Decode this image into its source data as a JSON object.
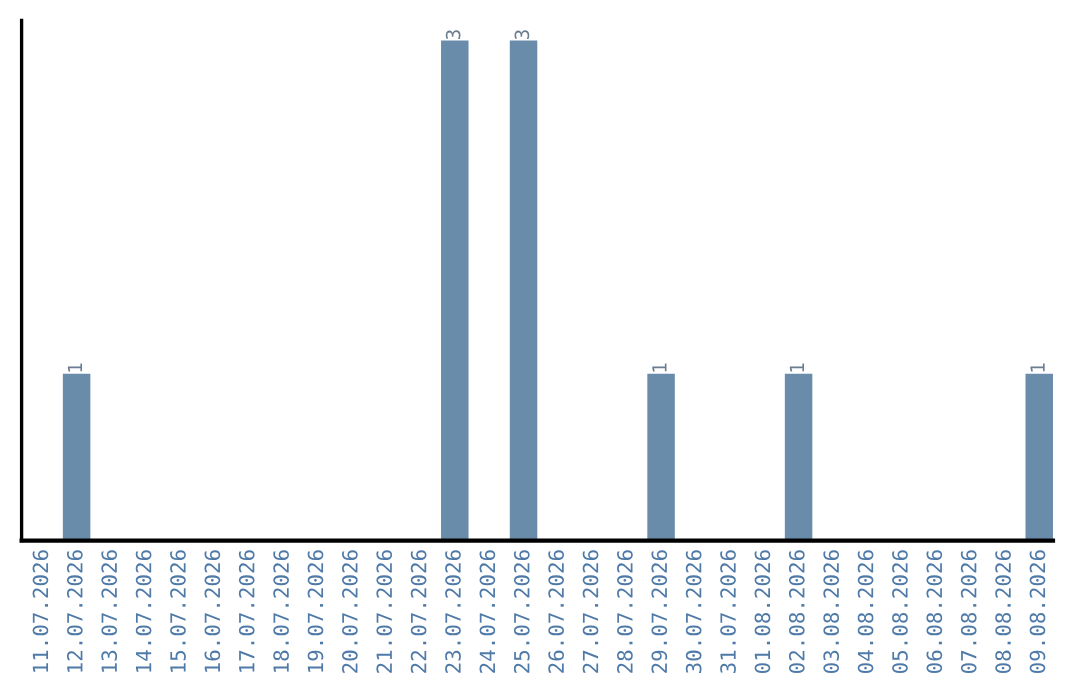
{
  "chart_data": {
    "type": "bar",
    "categories": [
      "11.07.2026",
      "12.07.2026",
      "13.07.2026",
      "14.07.2026",
      "15.07.2026",
      "16.07.2026",
      "17.07.2026",
      "18.07.2026",
      "19.07.2026",
      "20.07.2026",
      "21.07.2026",
      "22.07.2026",
      "23.07.2026",
      "24.07.2026",
      "25.07.2026",
      "26.07.2026",
      "27.07.2026",
      "28.07.2026",
      "29.07.2026",
      "30.07.2026",
      "31.07.2026",
      "01.08.2026",
      "02.08.2026",
      "03.08.2026",
      "04.08.2026",
      "05.08.2026",
      "06.08.2026",
      "07.08.2026",
      "08.08.2026",
      "09.08.2026"
    ],
    "values": [
      0,
      1,
      0,
      0,
      0,
      0,
      0,
      0,
      0,
      0,
      0,
      0,
      3,
      0,
      3,
      0,
      0,
      0,
      1,
      0,
      0,
      0,
      1,
      0,
      0,
      0,
      0,
      0,
      0,
      1
    ],
    "value_labels": [
      null,
      "1",
      null,
      null,
      null,
      null,
      null,
      null,
      null,
      null,
      null,
      null,
      "3",
      null,
      "3",
      null,
      null,
      null,
      "1",
      null,
      null,
      null,
      "1",
      null,
      null,
      null,
      null,
      null,
      null,
      "1"
    ],
    "color": "#6a8cab",
    "grid": false,
    "legend": false,
    "tick_labels": "x"
  }
}
